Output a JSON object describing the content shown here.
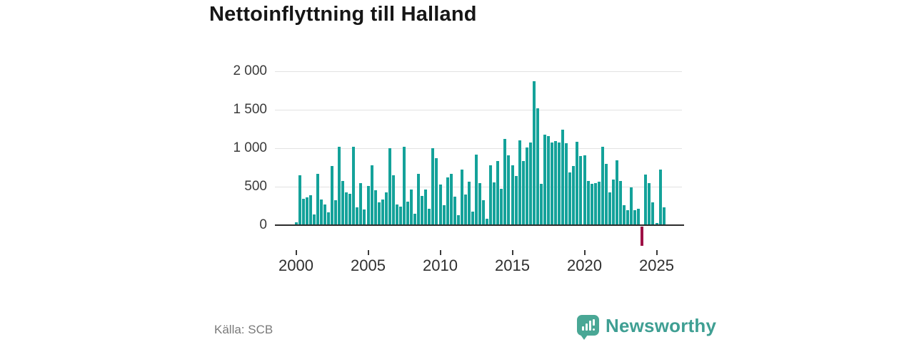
{
  "title": "Nettoinflyttning till Halland",
  "source": "Källa: SCB",
  "branding": {
    "logo_text": "Newsworthy"
  },
  "colors": {
    "bar": "#14a29a",
    "negative_bar": "#9e1146",
    "grid": "#e2e2e2",
    "axis": "#2b2b2b",
    "logo": "#49a795"
  },
  "chart_data": {
    "type": "bar",
    "title": "Nettoinflyttning till Halland",
    "frequency": "quarterly",
    "start_period": "2000-Q1",
    "end_period": "2025-Q3",
    "xlabel": "",
    "ylabel": "",
    "grid": true,
    "legend": "none",
    "ylim": [
      -300,
      2100
    ],
    "y_ticks": [
      0,
      500,
      1000,
      1500,
      2000
    ],
    "y_tick_labels": [
      "0",
      "500",
      "1 000",
      "1 500",
      "2 000"
    ],
    "x_tick_years": [
      2000,
      2005,
      2010,
      2015,
      2020,
      2025
    ],
    "x_tick_labels": [
      "2000",
      "2005",
      "2010",
      "2015",
      "2020",
      "2025"
    ],
    "negative_highlight_period": "2024-Q1",
    "values": [
      40,
      650,
      340,
      365,
      390,
      135,
      665,
      330,
      270,
      165,
      765,
      320,
      1020,
      570,
      430,
      410,
      1020,
      235,
      545,
      205,
      510,
      775,
      450,
      300,
      330,
      430,
      1000,
      645,
      270,
      240,
      1020,
      310,
      460,
      150,
      670,
      380,
      460,
      215,
      1000,
      875,
      525,
      255,
      625,
      670,
      370,
      130,
      725,
      395,
      565,
      180,
      915,
      550,
      320,
      80,
      775,
      560,
      835,
      475,
      1125,
      905,
      780,
      635,
      1105,
      835,
      1005,
      1070,
      1875,
      1520,
      540,
      1180,
      1155,
      1070,
      1095,
      1075,
      1240,
      1065,
      685,
      765,
      1085,
      900,
      905,
      575,
      535,
      550,
      565,
      1015,
      800,
      425,
      590,
      845,
      570,
      260,
      195,
      490,
      195,
      210,
      -250,
      660,
      550,
      295,
      30,
      725,
      235
    ]
  }
}
